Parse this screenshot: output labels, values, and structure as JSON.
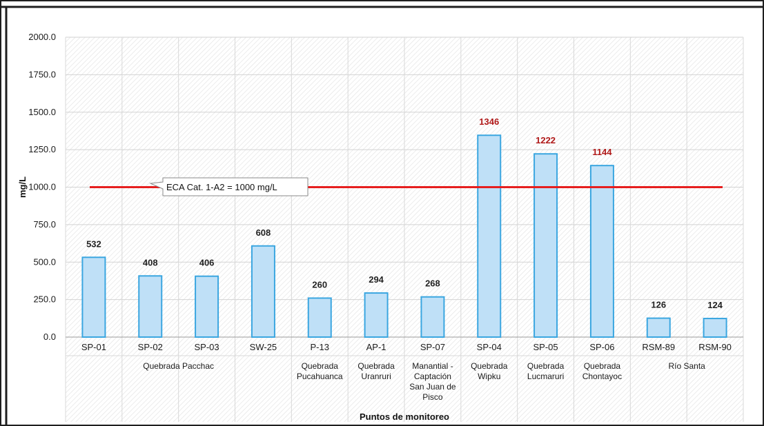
{
  "chart_data": {
    "type": "bar",
    "title": "",
    "xlabel": "Puntos de monitoreo",
    "ylabel": "mg/L",
    "ylim": [
      0,
      2000
    ],
    "yticks": [
      "0.0",
      "250.0",
      "500.0",
      "750.0",
      "1000.0",
      "1250.0",
      "1500.0",
      "1750.0",
      "2000.0"
    ],
    "categories": [
      "SP-01",
      "SP-02",
      "SP-03",
      "SW-25",
      "P-13",
      "AP-1",
      "SP-07",
      "SP-04",
      "SP-05",
      "SP-06",
      "RSM-89",
      "RSM-90"
    ],
    "values": [
      532,
      408,
      406,
      608,
      260,
      294,
      268,
      1346,
      1222,
      1144,
      126,
      124
    ],
    "value_labels": [
      "532",
      "408",
      "406",
      "608",
      "260",
      "294",
      "268",
      "1346",
      "1222",
      "1144",
      "126",
      "124"
    ],
    "groups": [
      {
        "label": "Quebrada Pacchac",
        "lines": [
          "Quebrada Pacchac"
        ],
        "span": [
          0,
          3
        ]
      },
      {
        "label": "Quebrada Pucahuanca",
        "lines": [
          "Quebrada",
          "Pucahuanca"
        ],
        "span": [
          4,
          4
        ]
      },
      {
        "label": "Quebrada Uranruri",
        "lines": [
          "Quebrada",
          "Uranruri"
        ],
        "span": [
          5,
          5
        ]
      },
      {
        "label": "Manantial - Captación San Juan de Pisco",
        "lines": [
          "Manantial -",
          "Captación",
          "San Juan de",
          "Pisco"
        ],
        "span": [
          6,
          6
        ]
      },
      {
        "label": "Quebrada Wipku",
        "lines": [
          "Quebrada",
          "Wipku"
        ],
        "span": [
          7,
          7
        ]
      },
      {
        "label": "Quebrada Lucmaruri",
        "lines": [
          "Quebrada",
          "Lucmaruri"
        ],
        "span": [
          8,
          8
        ]
      },
      {
        "label": "Quebrada Chontayoc",
        "lines": [
          "Quebrada",
          "Chontayoc"
        ],
        "span": [
          9,
          9
        ]
      },
      {
        "label": "Río Santa",
        "lines": [
          "Río Santa"
        ],
        "span": [
          10,
          11
        ]
      }
    ],
    "reference_line": {
      "value": 1000,
      "label": "ECA Cat. 1-A2 = 1000 mg/L"
    },
    "grid": true,
    "legend": "none",
    "colors": {
      "bar_fill": "#bfe0f7",
      "bar_stroke": "#3aa6e0",
      "line": "#e61e1e",
      "exceed_label": "#b01818",
      "normal_label": "#222222"
    }
  }
}
